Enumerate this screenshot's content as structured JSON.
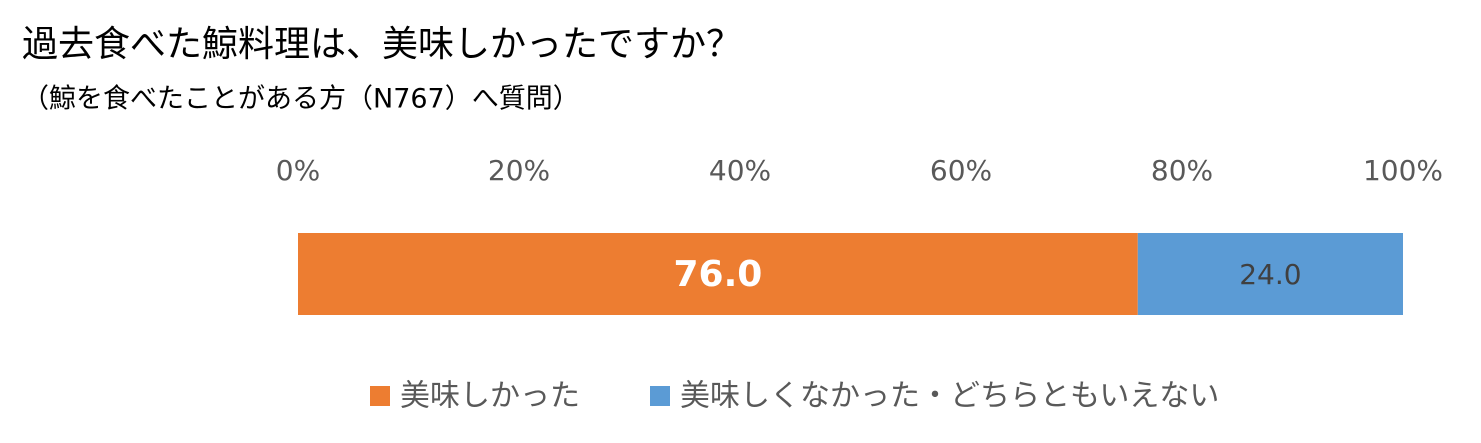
{
  "chart_data": {
    "type": "stacked-bar-horizontal",
    "title": "過去食べた鯨料理は、美味しかったですか？",
    "subtitle": "（鯨を食べたことがある方（N767）へ質問）",
    "categories": [
      null
    ],
    "series": [
      {
        "name": "美味しかった",
        "color": "#ED7D31",
        "values": [
          76.0
        ],
        "value_labels": [
          "76.0"
        ]
      },
      {
        "name": "美味しくなかった・どちらともいえない",
        "color": "#5B9BD5",
        "values": [
          24.0
        ],
        "value_labels": [
          "24.0"
        ]
      }
    ],
    "xlim": [
      0,
      100
    ],
    "xticks": [
      {
        "value": 0,
        "label": "0%"
      },
      {
        "value": 20,
        "label": "20%"
      },
      {
        "value": 40,
        "label": "40%"
      },
      {
        "value": 60,
        "label": "60%"
      },
      {
        "value": 80,
        "label": "80%"
      },
      {
        "value": 100,
        "label": "100%"
      }
    ],
    "grid": false,
    "legend": "bottom"
  }
}
